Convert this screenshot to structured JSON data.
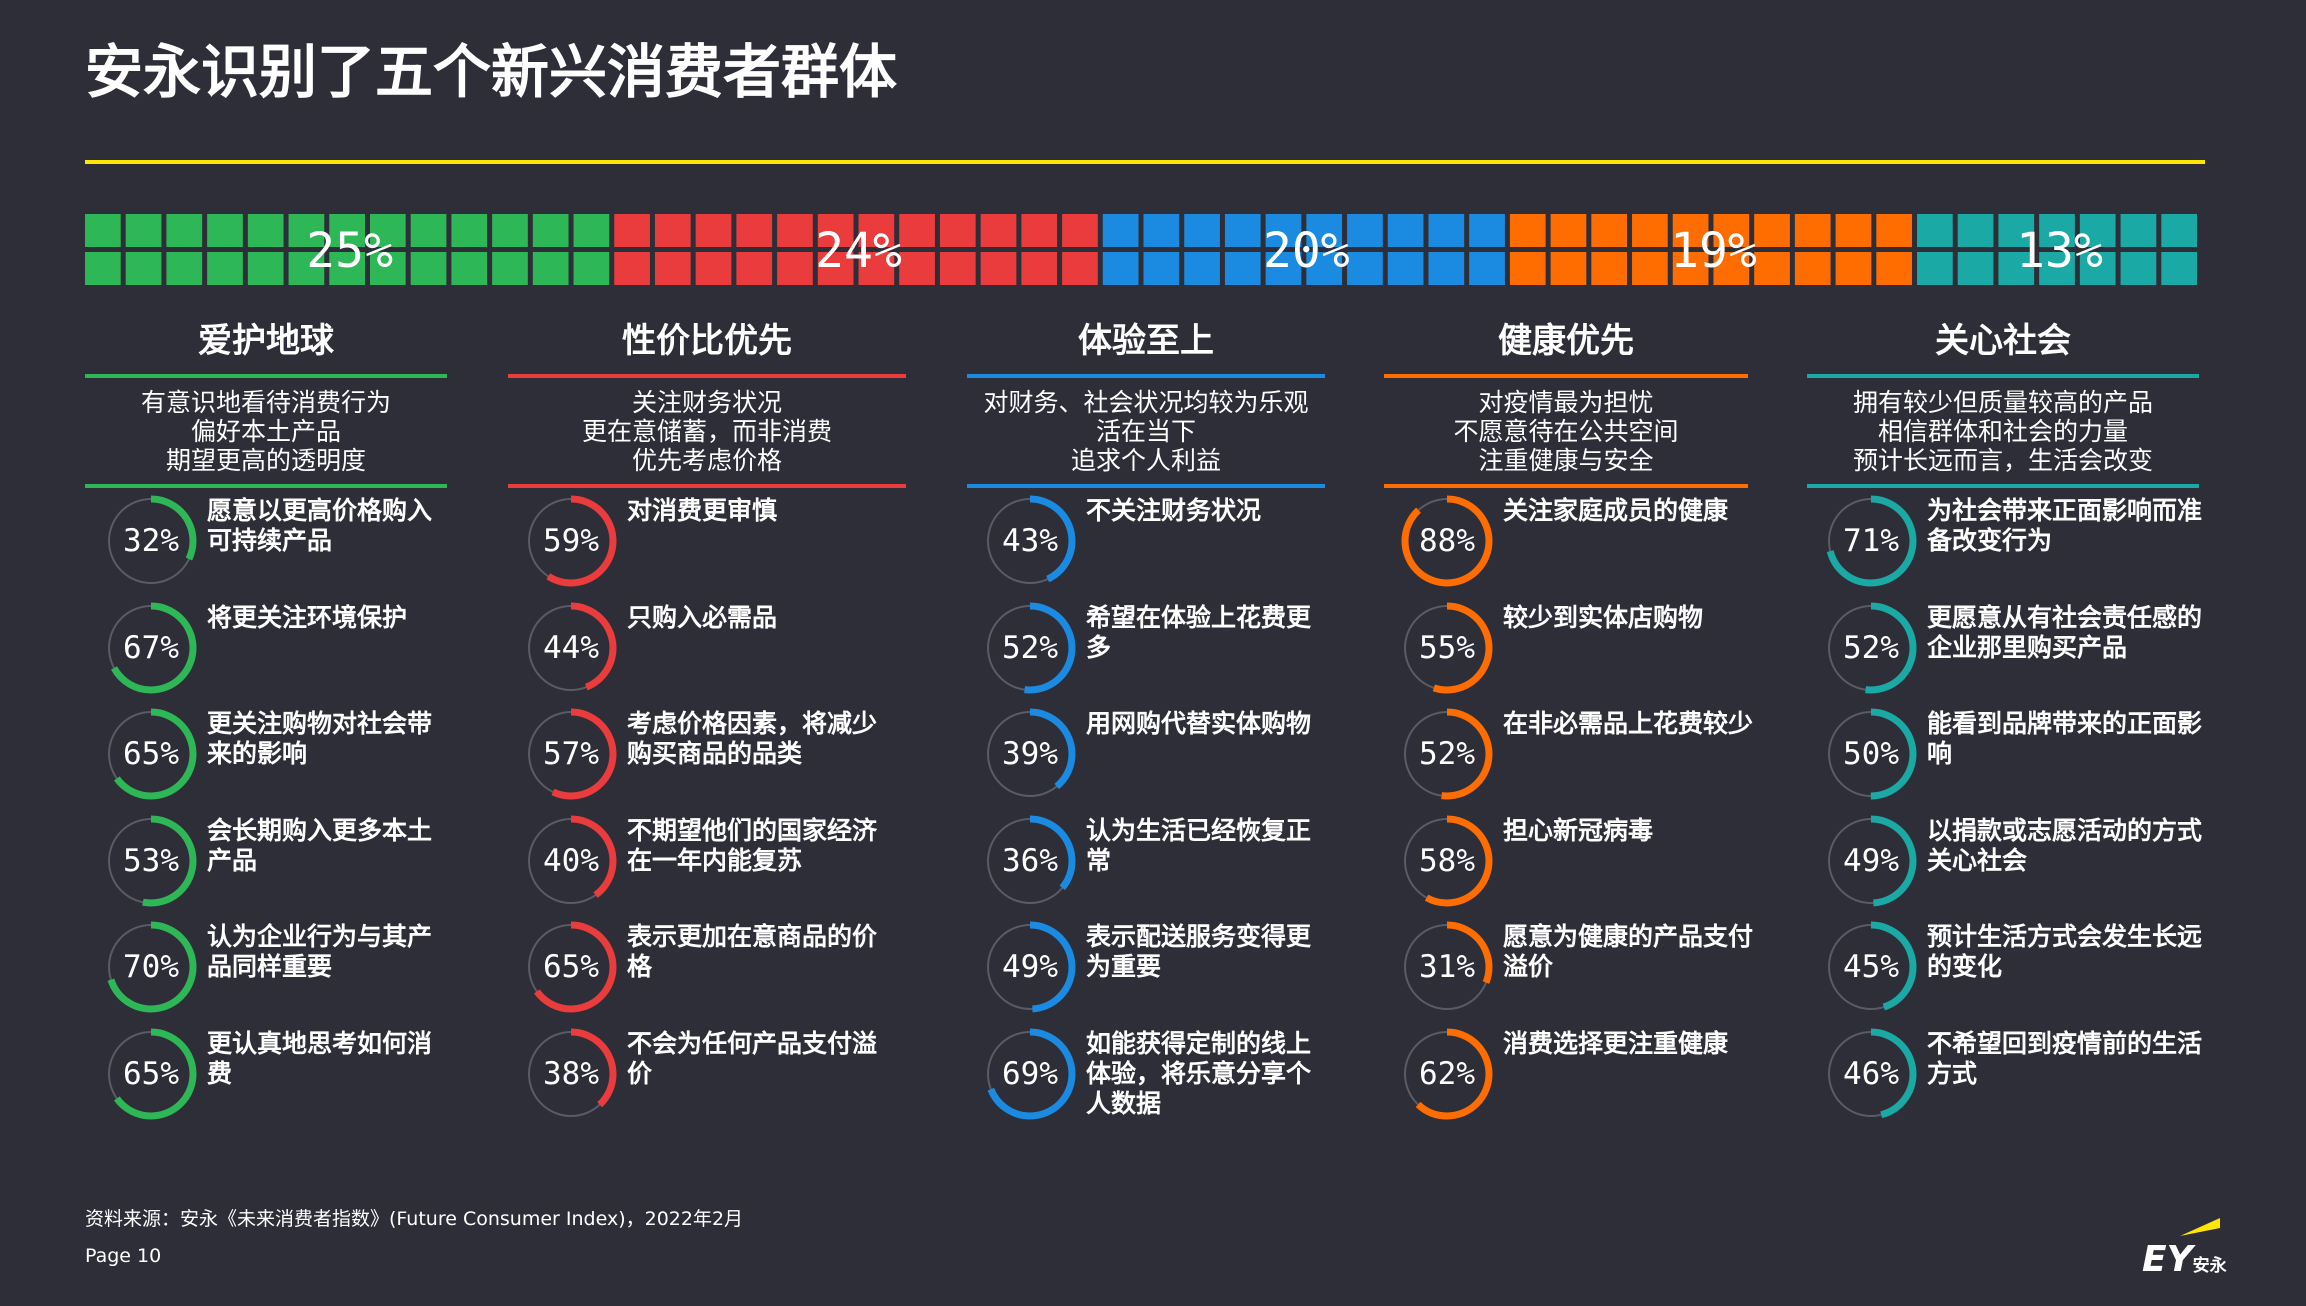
{
  "title": "安永识别了五个新兴消费者群体",
  "chart_data": {
    "type": "waffle",
    "title": "安永识别了五个新兴消费者群体",
    "segments": [
      {
        "name": "爱护地球",
        "value": 25,
        "label": "25%",
        "color": "#2db757"
      },
      {
        "name": "性价比优先",
        "value": 24,
        "label": "24%",
        "color": "#ea3c3c"
      },
      {
        "name": "体验至上",
        "value": 20,
        "label": "20%",
        "color": "#1a8be1"
      },
      {
        "name": "健康优先",
        "value": 19,
        "label": "19%",
        "color": "#ff6d00"
      },
      {
        "name": "关心社会",
        "value": 13,
        "label": "13%",
        "color": "#1aa9a4"
      }
    ]
  },
  "groups": [
    {
      "name": "爱护地球",
      "color": "#2db757",
      "desc": [
        "有意识地看待消费行为",
        "偏好本土产品",
        "期望更高的透明度"
      ],
      "items": [
        {
          "pct": 32,
          "label": "32%",
          "text": "愿意以更高价格购入可持续产品"
        },
        {
          "pct": 67,
          "label": "67%",
          "text": "将更关注环境保护"
        },
        {
          "pct": 65,
          "label": "65%",
          "text": "更关注购物对社会带来的影响"
        },
        {
          "pct": 53,
          "label": "53%",
          "text": "会长期购入更多本土产品"
        },
        {
          "pct": 70,
          "label": "70%",
          "text": "认为企业行为与其产品同样重要"
        },
        {
          "pct": 65,
          "label": "65%",
          "text": "更认真地思考如何消费"
        }
      ]
    },
    {
      "name": "性价比优先",
      "color": "#ea3c3c",
      "desc": [
        "关注财务状况",
        "更在意储蓄，而非消费",
        "优先考虑价格"
      ],
      "items": [
        {
          "pct": 59,
          "label": "59%",
          "text": "对消费更审慎"
        },
        {
          "pct": 44,
          "label": "44%",
          "text": "只购入必需品"
        },
        {
          "pct": 57,
          "label": "57%",
          "text": "考虑价格因素，将减少购买商品的品类"
        },
        {
          "pct": 40,
          "label": "40%",
          "text": "不期望他们的国家经济在一年内能复苏"
        },
        {
          "pct": 65,
          "label": "65%",
          "text": "表示更加在意商品的价格"
        },
        {
          "pct": 38,
          "label": "38%",
          "text": "不会为任何产品支付溢价"
        }
      ]
    },
    {
      "name": "体验至上",
      "color": "#1a8be1",
      "desc": [
        "对财务、社会状况均较为乐观",
        "活在当下",
        "追求个人利益"
      ],
      "items": [
        {
          "pct": 43,
          "label": "43%",
          "text": "不关注财务状况"
        },
        {
          "pct": 52,
          "label": "52%",
          "text": "希望在体验上花费更多"
        },
        {
          "pct": 39,
          "label": "39%",
          "text": "用网购代替实体购物"
        },
        {
          "pct": 36,
          "label": "36%",
          "text": "认为生活已经恢复正常"
        },
        {
          "pct": 49,
          "label": "49%",
          "text": "表示配送服务变得更为重要"
        },
        {
          "pct": 69,
          "label": "69%",
          "text": "如能获得定制的线上体验，将乐意分享个人数据"
        }
      ]
    },
    {
      "name": "健康优先",
      "color": "#ff6d00",
      "desc": [
        "对疫情最为担忧",
        "不愿意待在公共空间",
        "注重健康与安全"
      ],
      "items": [
        {
          "pct": 88,
          "label": "88%",
          "text": "关注家庭成员的健康"
        },
        {
          "pct": 55,
          "label": "55%",
          "text": "较少到实体店购物"
        },
        {
          "pct": 52,
          "label": "52%",
          "text": "在非必需品上花费较少"
        },
        {
          "pct": 58,
          "label": "58%",
          "text": "担心新冠病毒"
        },
        {
          "pct": 31,
          "label": "31%",
          "text": "愿意为健康的产品支付溢价"
        },
        {
          "pct": 62,
          "label": "62%",
          "text": "消费选择更注重健康"
        }
      ]
    },
    {
      "name": "关心社会",
      "color": "#1aa9a4",
      "desc": [
        "拥有较少但质量较高的产品",
        "相信群体和社会的力量",
        "预计长远而言，生活会改变"
      ],
      "items": [
        {
          "pct": 71,
          "label": "71%",
          "text": "为社会带来正面影响而准备改变行为"
        },
        {
          "pct": 52,
          "label": "52%",
          "text": "更愿意从有社会责任感的企业那里购买产品"
        },
        {
          "pct": 50,
          "label": "50%",
          "text": "能看到品牌带来的正面影响"
        },
        {
          "pct": 49,
          "label": "49%",
          "text": "以捐款或志愿活动的方式关心社会"
        },
        {
          "pct": 45,
          "label": "45%",
          "text": "预计生活方式会发生长远的变化"
        },
        {
          "pct": 46,
          "label": "46%",
          "text": "不希望回到疫情前的生活方式"
        }
      ]
    }
  ],
  "source": "资料来源：安永《未来消费者指数》(Future Consumer Index)，2022年2月",
  "page": "Page 10",
  "logo": {
    "main": "EY",
    "sub": "安永"
  }
}
